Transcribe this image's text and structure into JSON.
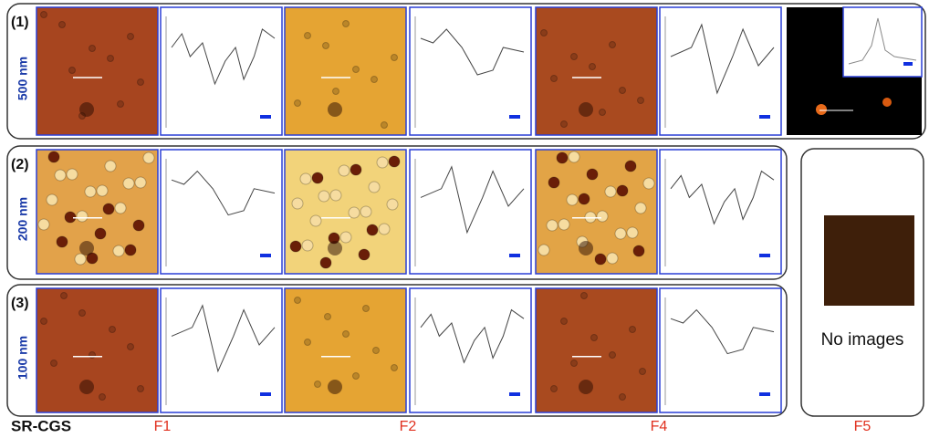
{
  "rows": [
    {
      "index": "(1)",
      "scale": "500 nm"
    },
    {
      "index": "(2)",
      "scale": "200 nm"
    },
    {
      "index": "(3)",
      "scale": "100 nm"
    }
  ],
  "placeholder": "No images",
  "sample": "SR-CGS",
  "columns": [
    "F1",
    "F2",
    "F4",
    "F5"
  ]
}
